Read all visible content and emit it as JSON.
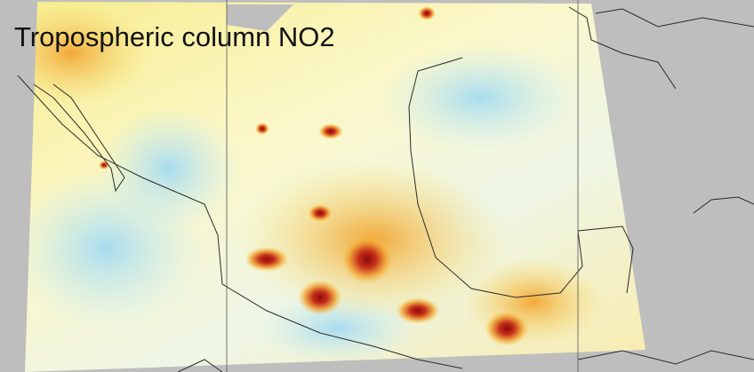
{
  "title": "Tropospheric column NO2"
}
